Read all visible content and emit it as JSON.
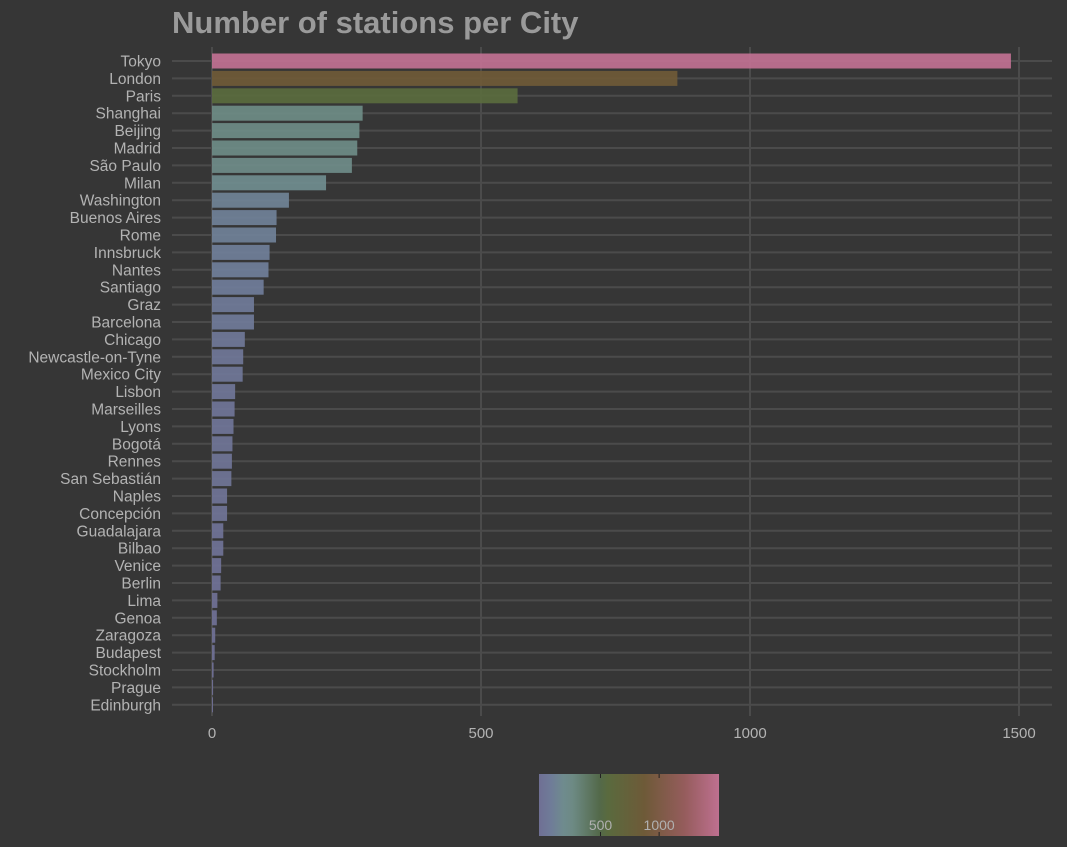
{
  "chart_data": {
    "type": "bar",
    "orientation": "horizontal",
    "title": "Number of stations per City",
    "xlabel": "",
    "ylabel": "",
    "xlim": [
      -70,
      1550
    ],
    "x_ticks": [
      0,
      500,
      1000,
      1500
    ],
    "grid": true,
    "legend_position": "bottom",
    "categories": [
      "Tokyo",
      "London",
      "Paris",
      "Shanghai",
      "Beijing",
      "Madrid",
      "São Paulo",
      "Milan",
      "Washington",
      "Buenos Aires",
      "Rome",
      "Innsbruck",
      "Nantes",
      "Santiago",
      "Graz",
      "Barcelona",
      "Chicago",
      "Newcastle-on-Tyne",
      "Mexico City",
      "Lisbon",
      "Marseilles",
      "Lyons",
      "Bogotá",
      "Rennes",
      "San Sebastián",
      "Naples",
      "Concepción",
      "Guadalajara",
      "Bilbao",
      "Venice",
      "Berlin",
      "Lima",
      "Genoa",
      "Zaragoza",
      "Budapest",
      "Stockholm",
      "Prague",
      "Edinburgh"
    ],
    "values": [
      1485,
      865,
      568,
      280,
      274,
      270,
      260,
      212,
      143,
      120,
      119,
      107,
      105,
      96,
      78,
      78,
      61,
      58,
      57,
      43,
      42,
      40,
      38,
      37,
      36,
      28,
      28,
      21,
      21,
      17,
      16,
      10,
      9,
      6,
      5,
      3,
      2,
      1
    ],
    "colorbar": {
      "min": 1,
      "max": 1485,
      "ticks": [
        500,
        1000
      ],
      "stops": [
        {
          "value": 1,
          "color": "#6f6f94"
        },
        {
          "value": 100,
          "color": "#6f7c98"
        },
        {
          "value": 200,
          "color": "#6f8b8e"
        },
        {
          "value": 280,
          "color": "#6d8a84"
        },
        {
          "value": 500,
          "color": "#53694a"
        },
        {
          "value": 570,
          "color": "#5a6a3e"
        },
        {
          "value": 870,
          "color": "#6e5a38"
        },
        {
          "value": 1200,
          "color": "#955c5c"
        },
        {
          "value": 1485,
          "color": "#be7090"
        }
      ]
    }
  }
}
